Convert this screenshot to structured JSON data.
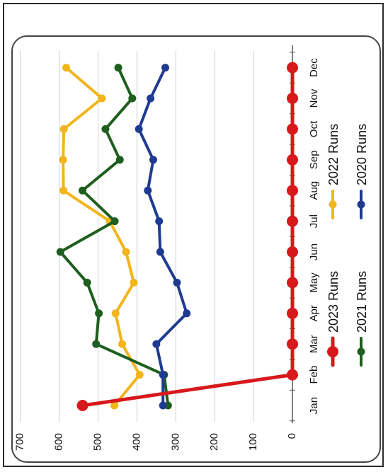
{
  "chart_data": {
    "type": "line",
    "orientation": "rotated-90-clockwise",
    "title": "",
    "xlabel": "",
    "ylabel": "",
    "categories": [
      "Jan",
      "Feb",
      "Mar",
      "Apr",
      "May",
      "Jun",
      "Jul",
      "Aug",
      "Sep",
      "Oct",
      "Nov",
      "Dec"
    ],
    "ylim": [
      0,
      700
    ],
    "yticks": [
      "0",
      "100",
      "200",
      "300",
      "400",
      "500",
      "600",
      "700"
    ],
    "grid": true,
    "legend_position": "bottom",
    "series": [
      {
        "name": "2023 Runs",
        "color": "#d7191c",
        "values": [
          540,
          0,
          0,
          0,
          0,
          0,
          0,
          0,
          0,
          0,
          0,
          0
        ]
      },
      {
        "name": "2022 Runs",
        "color": "#f2b51b",
        "values": [
          458,
          393,
          438,
          455,
          408,
          428,
          470,
          589,
          590,
          588,
          490,
          582
        ]
      },
      {
        "name": "2021 Runs",
        "color": "#1e5e1e",
        "values": [
          320,
          330,
          505,
          498,
          528,
          597,
          457,
          540,
          444,
          481,
          412,
          448
        ]
      },
      {
        "name": "2020 Runs",
        "color": "#1f3b91",
        "values": [
          333,
          333,
          350,
          272,
          297,
          340,
          343,
          372,
          358,
          395,
          365,
          327
        ]
      }
    ]
  }
}
